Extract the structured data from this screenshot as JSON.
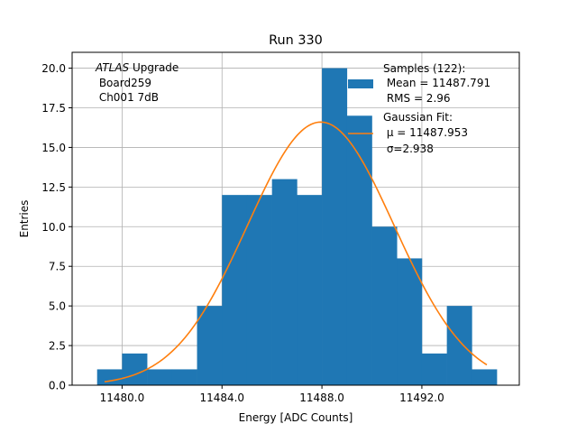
{
  "chart_data": {
    "type": "bar",
    "title": "Run 330",
    "xlabel": "Energy [ADC Counts]",
    "ylabel": "Entries",
    "xlim": [
      11478.0,
      11495.9
    ],
    "ylim": [
      0,
      21.0
    ],
    "xticks": [
      11480.0,
      11484.0,
      11488.0,
      11492.0
    ],
    "xtick_labels": [
      "11480.0",
      "11484.0",
      "11488.0",
      "11492.0"
    ],
    "yticks": [
      0.0,
      2.5,
      5.0,
      7.5,
      10.0,
      12.5,
      15.0,
      17.5,
      20.0
    ],
    "ytick_labels": [
      "0.0",
      "2.5",
      "5.0",
      "7.5",
      "10.0",
      "12.5",
      "15.0",
      "17.5",
      "20.0"
    ],
    "grid": true,
    "bar_color": "#1f77b4",
    "fit_color": "#ff7f0e",
    "histogram": {
      "bin_edges": [
        11479.0,
        11480.0,
        11481.0,
        11482.0,
        11483.0,
        11484.0,
        11485.0,
        11486.0,
        11487.0,
        11488.0,
        11489.0,
        11490.0,
        11491.0,
        11492.0,
        11493.0,
        11494.0,
        11495.0
      ],
      "counts": [
        1,
        2,
        1,
        1,
        5,
        12,
        12,
        13,
        12,
        20,
        17,
        10,
        8,
        2,
        5,
        1
      ]
    },
    "gaussian_fit": {
      "mu": 11487.953,
      "sigma": 2.938,
      "amplitude": 16.6,
      "x_range": [
        11479.3,
        11494.6
      ]
    },
    "annotation": {
      "italic": "ATLAS",
      "rest": " Upgrade",
      "line2": " Board259",
      "line3": " Ch001 7dB"
    },
    "legend": {
      "position": "top-right",
      "samples_lines": [
        "Samples (122):",
        " Mean = 11487.791",
        " RMS = 2.96"
      ],
      "fit_lines": [
        "Gaussian Fit:",
        " μ = 11487.953",
        " σ=2.938"
      ]
    }
  }
}
